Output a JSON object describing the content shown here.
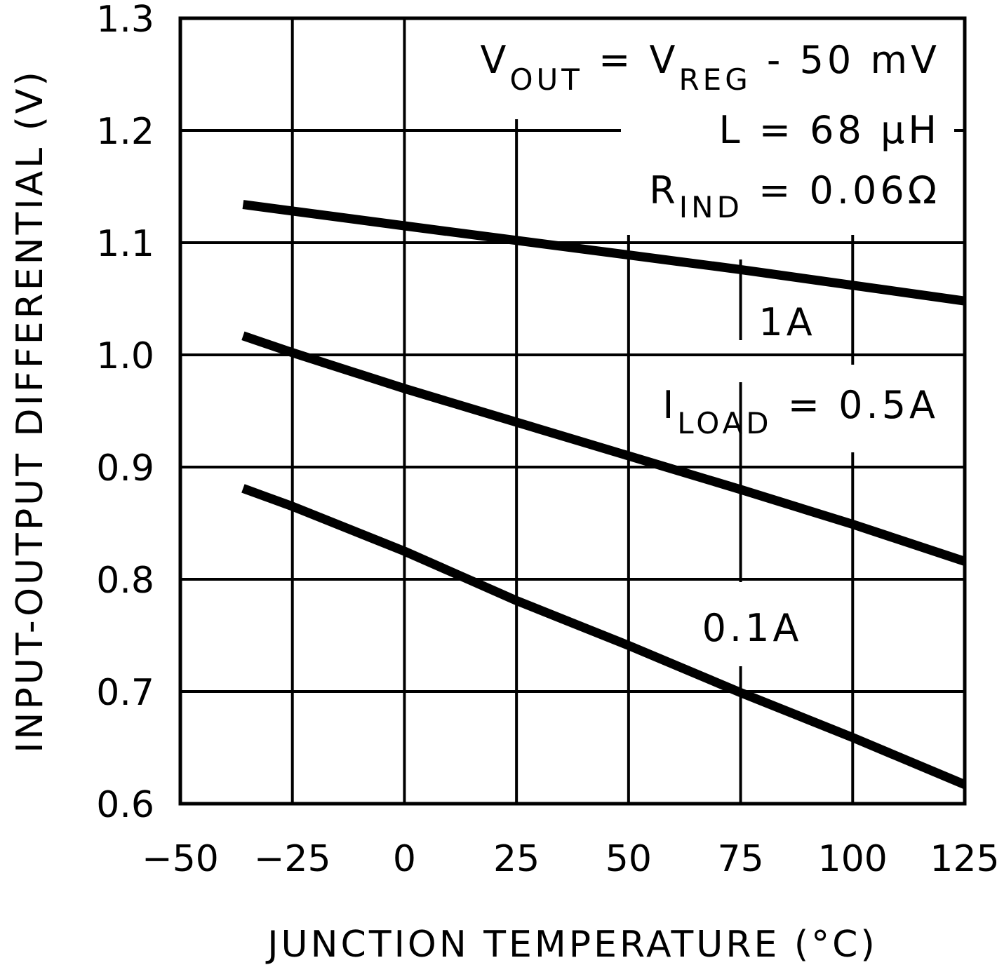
{
  "chart_data": {
    "type": "line",
    "xlabel": "JUNCTION TEMPERATURE (°C)",
    "ylabel": "INPUT-OUTPUT DIFFERENTIAL (V)",
    "xlim": [
      -50,
      125
    ],
    "ylim": [
      0.6,
      1.3
    ],
    "x_ticks": [
      -50,
      -25,
      0,
      25,
      50,
      75,
      100,
      125
    ],
    "x_tick_labels": [
      "−50",
      "−25",
      "0",
      "25",
      "50",
      "75",
      "100",
      "125"
    ],
    "y_ticks": [
      0.6,
      0.7,
      0.8,
      0.9,
      1.0,
      1.1,
      1.2,
      1.3
    ],
    "y_tick_labels": [
      "0.6",
      "0.7",
      "0.8",
      "0.9",
      "1.0",
      "1.1",
      "1.2",
      "1.3"
    ],
    "grid": true,
    "series": [
      {
        "name": "1A",
        "x": [
          -36,
          0,
          25,
          50,
          75,
          100,
          125
        ],
        "values": [
          1.134,
          1.115,
          1.102,
          1.089,
          1.076,
          1.062,
          1.048
        ]
      },
      {
        "name": "I_LOAD = 0.5A",
        "x": [
          -36,
          -25,
          0,
          25,
          50,
          75,
          100,
          125
        ],
        "values": [
          1.017,
          1.002,
          0.97,
          0.94,
          0.91,
          0.88,
          0.849,
          0.816
        ]
      },
      {
        "name": "0.1A",
        "x": [
          -36,
          -25,
          0,
          25,
          50,
          75,
          100,
          125
        ],
        "values": [
          0.881,
          0.865,
          0.825,
          0.781,
          0.741,
          0.699,
          0.659,
          0.617
        ]
      }
    ],
    "annotations": {
      "vout": {
        "main": "V",
        "sub": "OUT",
        "rest": " = V",
        "sub2": "REG",
        "tail": " - 50 mV"
      },
      "inductor": "L = 68 μH",
      "rind": {
        "main": "R",
        "sub": "IND",
        "rest": " = 0.06Ω"
      },
      "label_1a": "1A",
      "iload": {
        "main": "I",
        "sub": "LOAD",
        "rest": " = 0.5A"
      },
      "label_01a": "0.1A"
    },
    "colors": {
      "line": "#000000",
      "grid": "#000000",
      "background": "#ffffff"
    }
  }
}
